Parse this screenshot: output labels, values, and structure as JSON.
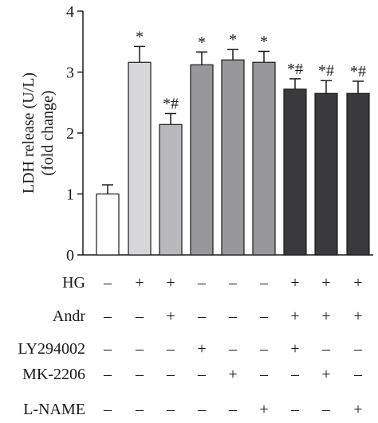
{
  "chart_data": {
    "type": "bar",
    "ylabel_line1": "LDH release (U/L)",
    "ylabel_line2": "(fold change)",
    "ylim": [
      0,
      4
    ],
    "yticks": [
      "0",
      "1",
      "2",
      "3",
      "4"
    ],
    "grid": false,
    "values": [
      1.0,
      3.16,
      2.14,
      3.12,
      3.2,
      3.16,
      2.72,
      2.65,
      2.65
    ],
    "errors": [
      0.15,
      0.26,
      0.18,
      0.21,
      0.17,
      0.18,
      0.17,
      0.21,
      0.2
    ],
    "bar_colors": [
      "#ffffff",
      "#d7d7d9",
      "#b9b9bc",
      "#98989b",
      "#98989b",
      "#98989b",
      "#3a3a3c",
      "#3a3a3c",
      "#3a3a3c"
    ],
    "significance": [
      "",
      "*",
      "*#",
      "*",
      "*",
      "*",
      "*#",
      "*#",
      "*#"
    ],
    "treatment_rows": [
      {
        "label": "HG",
        "signs": [
          "–",
          "+",
          "+",
          "–",
          "–",
          "–",
          "+",
          "+",
          "+"
        ]
      },
      {
        "label": "Andr",
        "signs": [
          "–",
          "–",
          "+",
          "–",
          "–",
          "–",
          "+",
          "+",
          "+"
        ]
      },
      {
        "label": "LY294002",
        "signs": [
          "–",
          "–",
          "–",
          "+",
          "–",
          "–",
          "+",
          "–",
          "–"
        ]
      },
      {
        "label": "MK-2206",
        "signs": [
          "–",
          "–",
          "–",
          "–",
          "+",
          "–",
          "–",
          "+",
          "–"
        ]
      },
      {
        "label": "L-NAME",
        "signs": [
          "–",
          "–",
          "–",
          "–",
          "–",
          "+",
          "–",
          "–",
          "+"
        ]
      }
    ]
  }
}
